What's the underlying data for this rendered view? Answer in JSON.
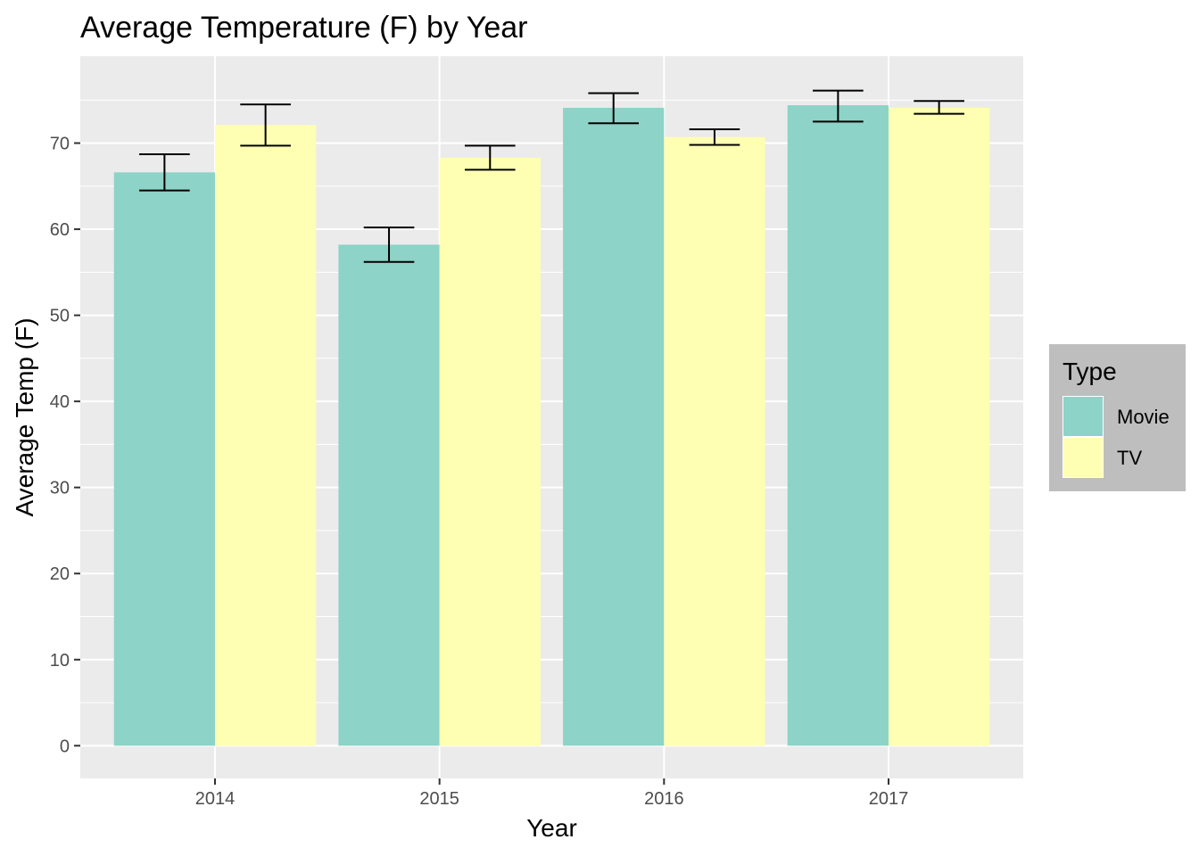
{
  "chart_data": {
    "type": "bar",
    "title": "Average Temperature (F) by Year",
    "xlabel": "Year",
    "ylabel": "Average Temp (F)",
    "categories": [
      "2014",
      "2015",
      "2016",
      "2017"
    ],
    "ylim": [
      -3.8,
      80.1
    ],
    "yticks": [
      0,
      10,
      20,
      30,
      40,
      50,
      60,
      70
    ],
    "grid": true,
    "legend": {
      "title": "Type",
      "placement": "right",
      "entries": [
        "Movie",
        "TV"
      ]
    },
    "series": [
      {
        "name": "Movie",
        "color": "#8DD3C7",
        "values": [
          66.6,
          58.2,
          74.1,
          74.4
        ],
        "error_low": [
          64.5,
          56.2,
          72.3,
          72.5
        ],
        "error_high": [
          68.7,
          60.2,
          75.8,
          76.1
        ]
      },
      {
        "name": "TV",
        "color": "#FFFFB3",
        "values": [
          72.1,
          68.3,
          70.7,
          74.1
        ],
        "error_low": [
          69.7,
          66.9,
          69.8,
          73.4
        ],
        "error_high": [
          74.5,
          69.7,
          71.6,
          74.9
        ]
      }
    ]
  }
}
